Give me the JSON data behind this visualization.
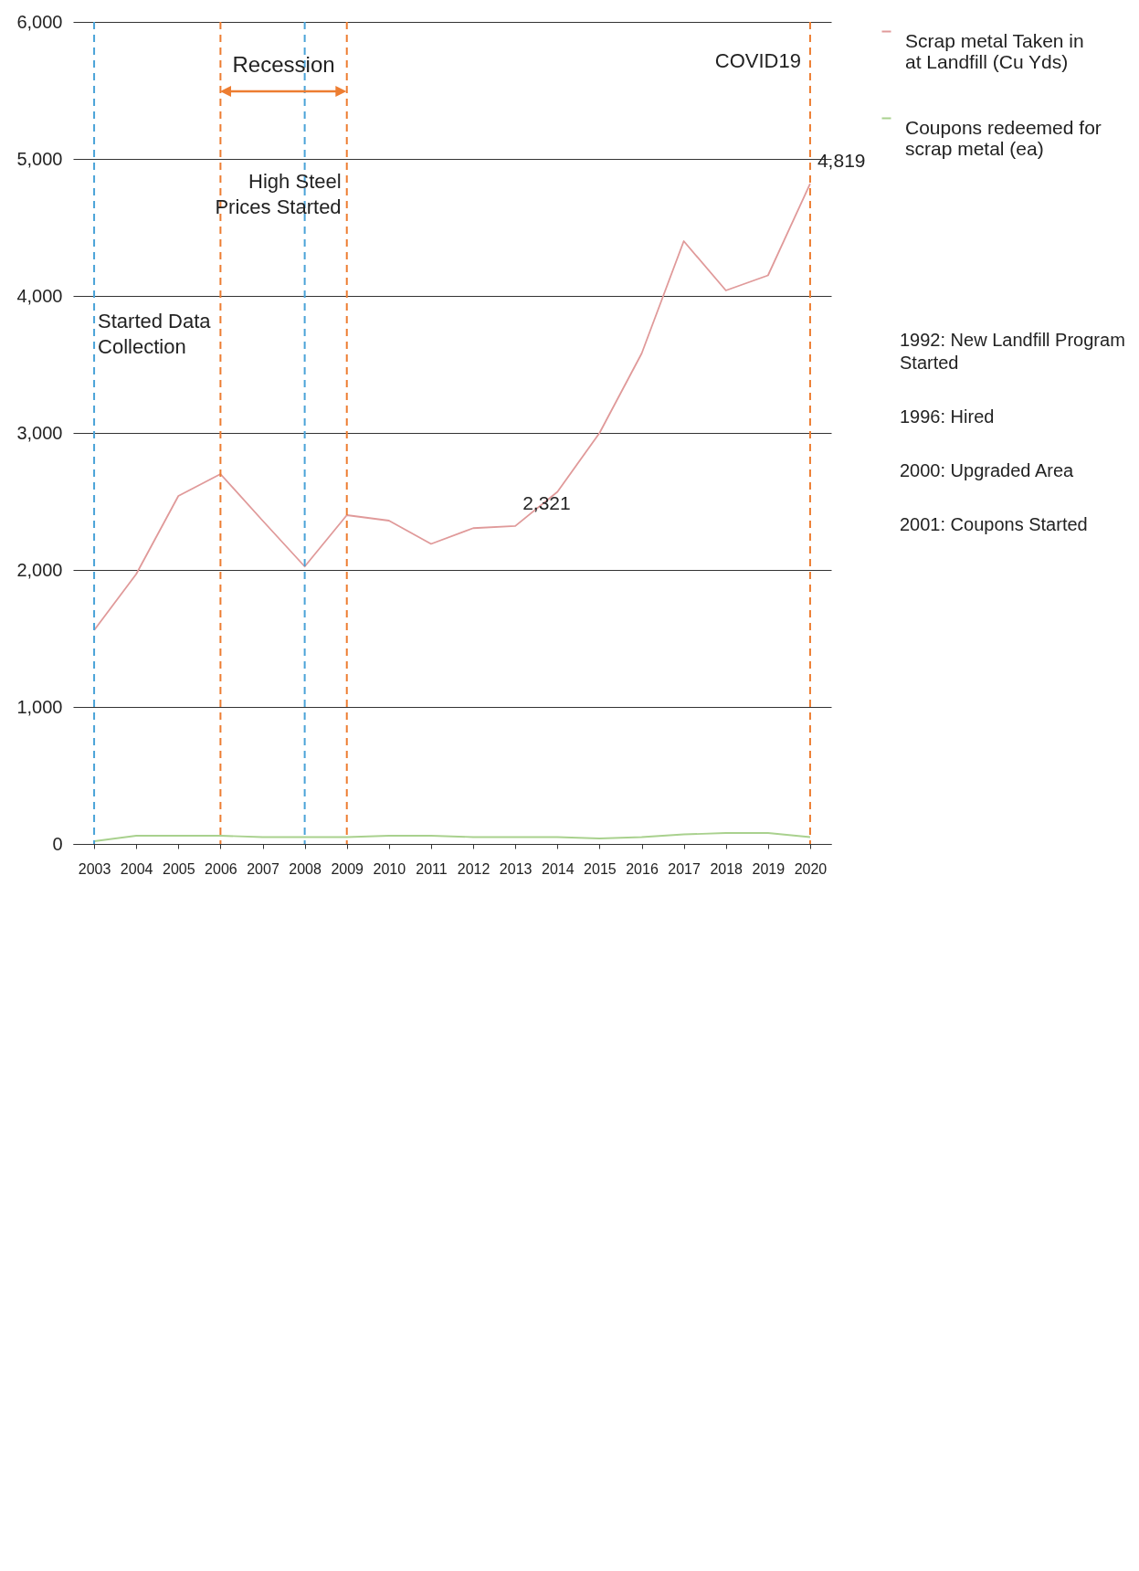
{
  "chart_data": {
    "type": "line",
    "categories": [
      "2003",
      "2004",
      "2005",
      "2006",
      "2007",
      "2008",
      "2009",
      "2010",
      "2011",
      "2012",
      "2013",
      "2014",
      "2015",
      "2016",
      "2017",
      "2018",
      "2019",
      "2020"
    ],
    "series": [
      {
        "name": "Scrap metal Taken in at Landfill (Cu Yds)",
        "color": "#e09a9a",
        "values": [
          1560,
          1970,
          2540,
          2700,
          2360,
          2025,
          2400,
          2360,
          2190,
          2305,
          2321,
          2570,
          3000,
          3580,
          4400,
          4040,
          4150,
          4819
        ],
        "value_labels": [
          null,
          null,
          null,
          null,
          null,
          null,
          null,
          null,
          null,
          null,
          "2,321",
          null,
          null,
          null,
          null,
          null,
          null,
          "4,819"
        ]
      },
      {
        "name": "Coupons redeemed for scrap metal (ea)",
        "color": "#a9d18e",
        "values": [
          20,
          60,
          60,
          60,
          50,
          50,
          50,
          60,
          60,
          50,
          50,
          50,
          40,
          50,
          70,
          80,
          80,
          50
        ]
      }
    ],
    "ylim": [
      0,
      6000
    ],
    "yticks": [
      0,
      {
        "value": 1000,
        "label": "1,000"
      },
      {
        "value": 2000,
        "label": "2,000"
      },
      {
        "value": 3000,
        "label": "3,000"
      },
      {
        "value": 4000,
        "label": "4,000"
      },
      {
        "value": 5000,
        "label": "5,000"
      },
      {
        "value": 6000,
        "label": "6,000"
      }
    ],
    "grid": "y",
    "legend": "right",
    "line_style": "solid",
    "marker": "none",
    "ref_lines": [
      {
        "axis": "x",
        "value": "2003",
        "label": "Started Data Collection",
        "color": "#4aa3d8",
        "line_style": "dashed"
      },
      {
        "axis": "x",
        "value": "2006",
        "color": "#ed7d31",
        "line_style": "dashed"
      },
      {
        "axis": "x",
        "value": "2008",
        "label": "High Steel Prices Started",
        "color": "#4aa3d8",
        "line_style": "dashed"
      },
      {
        "axis": "x",
        "value": "2009",
        "color": "#ed7d31",
        "line_style": "dashed"
      },
      {
        "axis": "x",
        "value": "2020",
        "label": "COVID19",
        "color": "#ed7d31",
        "line_style": "dashed"
      }
    ],
    "annotations": [
      {
        "text": "Recession",
        "x": "2006",
        "y": 5600
      },
      "1992: New Landfill Program Started",
      "1996: Hired",
      "2000: Upgraded Area",
      "2001: Coupons Started"
    ]
  }
}
